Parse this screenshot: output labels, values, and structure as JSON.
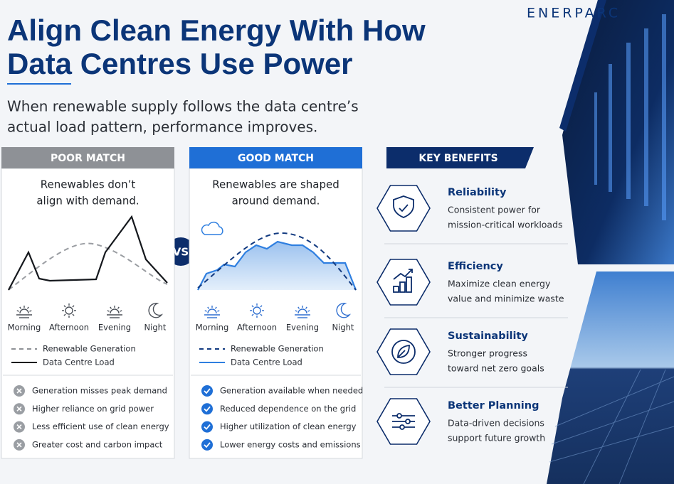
{
  "brand": "ENERPARC",
  "header": {
    "title": [
      "Align Clean Energy With How",
      "Data Centres Use Power"
    ],
    "subtitle": [
      "When renewable supply follows the data centre’s",
      "actual load pattern, performance improves."
    ]
  },
  "vs": "VS",
  "panels": [
    {
      "label": "POOR MATCH",
      "heading": [
        "Renewables don’t",
        "align with demand."
      ],
      "times": [
        "Morning",
        "Afternoon",
        "Evening",
        "Night"
      ],
      "legend": [
        "Renewable Generation",
        "Data Centre Load"
      ],
      "bullets": [
        "Generation misses peak demand",
        "Higher reliance on grid power",
        "Less efficient use of clean energy",
        "Greater cost and carbon impact"
      ]
    },
    {
      "label": "GOOD MATCH",
      "heading": [
        "Renewables are shaped",
        "around demand."
      ],
      "times": [
        "Morning",
        "Afternoon",
        "Evening",
        "Night"
      ],
      "legend": [
        "Renewable Generation",
        "Data Centre Load"
      ],
      "bullets": [
        "Generation available when needed",
        "Reduced dependence on the grid",
        "Higher utilization of clean energy",
        "Lower energy costs and emissions"
      ]
    }
  ],
  "benefits": {
    "label": "KEY BENEFITS",
    "items": [
      {
        "title": "Reliability",
        "text": [
          "Consistent power for",
          "mission-critical workloads"
        ]
      },
      {
        "title": "Efficiency",
        "text": [
          "Maximize clean energy",
          "value and minimize waste"
        ]
      },
      {
        "title": "Sustainability",
        "text": [
          "Stronger progress",
          "toward net zero goals"
        ]
      },
      {
        "title": "Better Planning",
        "text": [
          "Data-driven decisions",
          "support future growth"
        ]
      }
    ]
  }
}
